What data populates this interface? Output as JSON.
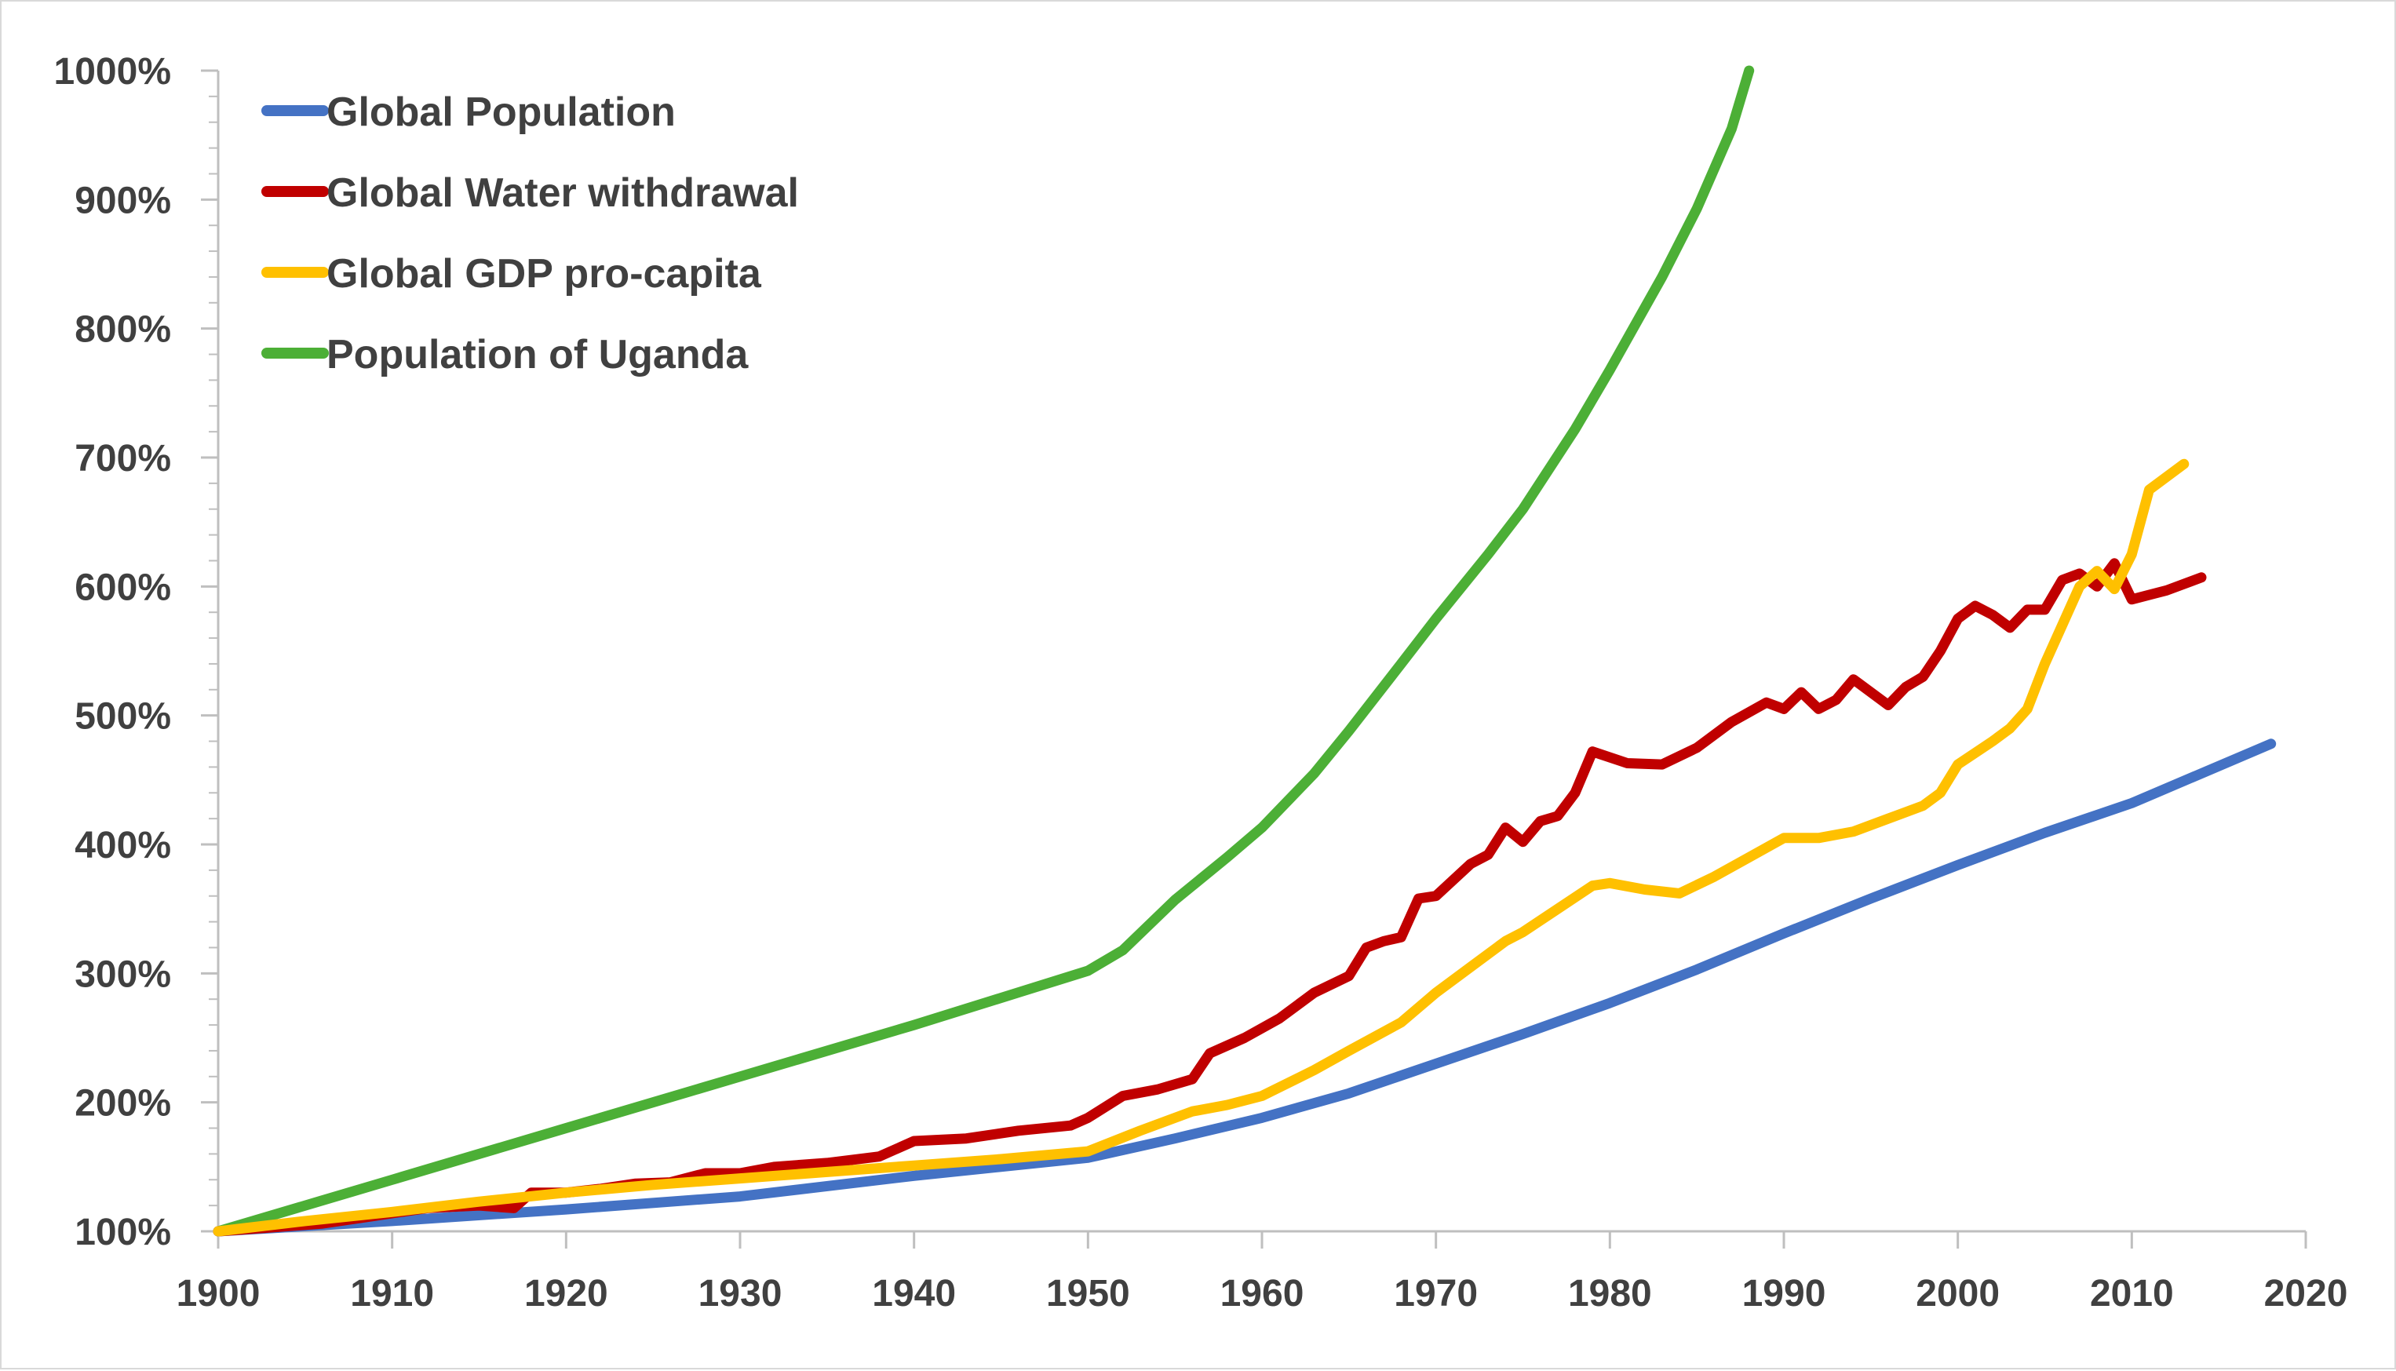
{
  "chart_data": {
    "type": "line",
    "title": "",
    "xlabel": "",
    "ylabel": "",
    "xlim": [
      1900,
      2020
    ],
    "ylim": [
      100,
      1000
    ],
    "x_ticks": [
      1900,
      1910,
      1920,
      1930,
      1940,
      1950,
      1960,
      1970,
      1980,
      1990,
      2000,
      2010,
      2020
    ],
    "x_tick_labels": [
      "1900",
      "1910",
      "1920",
      "1930",
      "1940",
      "1950",
      "1960",
      "1970",
      "1980",
      "1990",
      "2000",
      "2010",
      "2020"
    ],
    "y_ticks": [
      100,
      200,
      300,
      400,
      500,
      600,
      700,
      800,
      900,
      1000
    ],
    "y_tick_labels": [
      "100%",
      "200%",
      "300%",
      "400%",
      "500%",
      "600%",
      "700%",
      "800%",
      "900%",
      "1000%"
    ],
    "grid": false,
    "legend_position": "top-left",
    "series": [
      {
        "name": "Global Population",
        "color": "#4472c4",
        "x": [
          1900,
          1910,
          1920,
          1930,
          1940,
          1950,
          1955,
          1960,
          1965,
          1970,
          1975,
          1980,
          1985,
          1990,
          1995,
          2000,
          2005,
          2010,
          2018
        ],
        "y": [
          100,
          108,
          117,
          127,
          143,
          157,
          172,
          188,
          207,
          230,
          253,
          277,
          303,
          331,
          358,
          384,
          409,
          432,
          478
        ]
      },
      {
        "name": "Global Water withdrawal",
        "color": "#c00000",
        "x": [
          1900,
          1903,
          1906,
          1909,
          1912,
          1915,
          1917,
          1918,
          1920,
          1922,
          1924,
          1926,
          1928,
          1930,
          1932,
          1935,
          1938,
          1940,
          1943,
          1946,
          1949,
          1950,
          1952,
          1954,
          1956,
          1957,
          1959,
          1961,
          1963,
          1965,
          1966,
          1967,
          1968,
          1969,
          1970,
          1972,
          1973,
          1974,
          1975,
          1976,
          1977,
          1978,
          1979,
          1981,
          1983,
          1985,
          1987,
          1989,
          1990,
          1991,
          1992,
          1993,
          1994,
          1996,
          1997,
          1998,
          1999,
          2000,
          2001,
          2002,
          2003,
          2004,
          2005,
          2006,
          2007,
          2008,
          2009,
          2010,
          2012,
          2014
        ],
        "y": [
          100,
          103,
          106,
          112,
          118,
          120,
          118,
          130,
          130,
          133,
          137,
          138,
          145,
          145,
          150,
          153,
          158,
          170,
          172,
          178,
          182,
          188,
          205,
          210,
          218,
          238,
          250,
          265,
          285,
          298,
          320,
          325,
          328,
          358,
          360,
          385,
          392,
          413,
          402,
          418,
          422,
          440,
          472,
          463,
          462,
          475,
          495,
          510,
          505,
          518,
          505,
          512,
          528,
          508,
          522,
          530,
          550,
          575,
          585,
          578,
          568,
          582,
          582,
          605,
          610,
          600,
          618,
          590,
          597,
          607
        ]
      },
      {
        "name": "Global GDP pro-capita",
        "color": "#ffc000",
        "x": [
          1900,
          1905,
          1910,
          1915,
          1920,
          1925,
          1930,
          1935,
          1940,
          1945,
          1950,
          1953,
          1956,
          1958,
          1960,
          1963,
          1965,
          1968,
          1970,
          1972,
          1974,
          1975,
          1977,
          1979,
          1980,
          1982,
          1984,
          1986,
          1988,
          1990,
          1992,
          1994,
          1996,
          1998,
          1999,
          2000,
          2002,
          2003,
          2004,
          2005,
          2006,
          2007,
          2008,
          2009,
          2010,
          2011,
          2013
        ],
        "y": [
          100,
          108,
          115,
          123,
          130,
          136,
          141,
          146,
          151,
          156,
          162,
          178,
          193,
          198,
          205,
          225,
          240,
          262,
          285,
          305,
          325,
          332,
          350,
          368,
          370,
          365,
          362,
          375,
          390,
          405,
          405,
          410,
          420,
          430,
          440,
          462,
          480,
          490,
          505,
          540,
          570,
          600,
          612,
          598,
          625,
          675,
          695
        ]
      },
      {
        "name": "Population of Uganda",
        "color": "#4caf36",
        "x": [
          1900,
          1910,
          1920,
          1930,
          1940,
          1950,
          1952,
          1955,
          1958,
          1960,
          1963,
          1965,
          1968,
          1970,
          1973,
          1975,
          1978,
          1980,
          1983,
          1985,
          1987,
          1988
        ],
        "y": [
          100,
          140,
          180,
          220,
          260,
          302,
          318,
          357,
          390,
          413,
          455,
          488,
          540,
          575,
          625,
          660,
          722,
          768,
          840,
          893,
          955,
          1000
        ]
      }
    ]
  }
}
